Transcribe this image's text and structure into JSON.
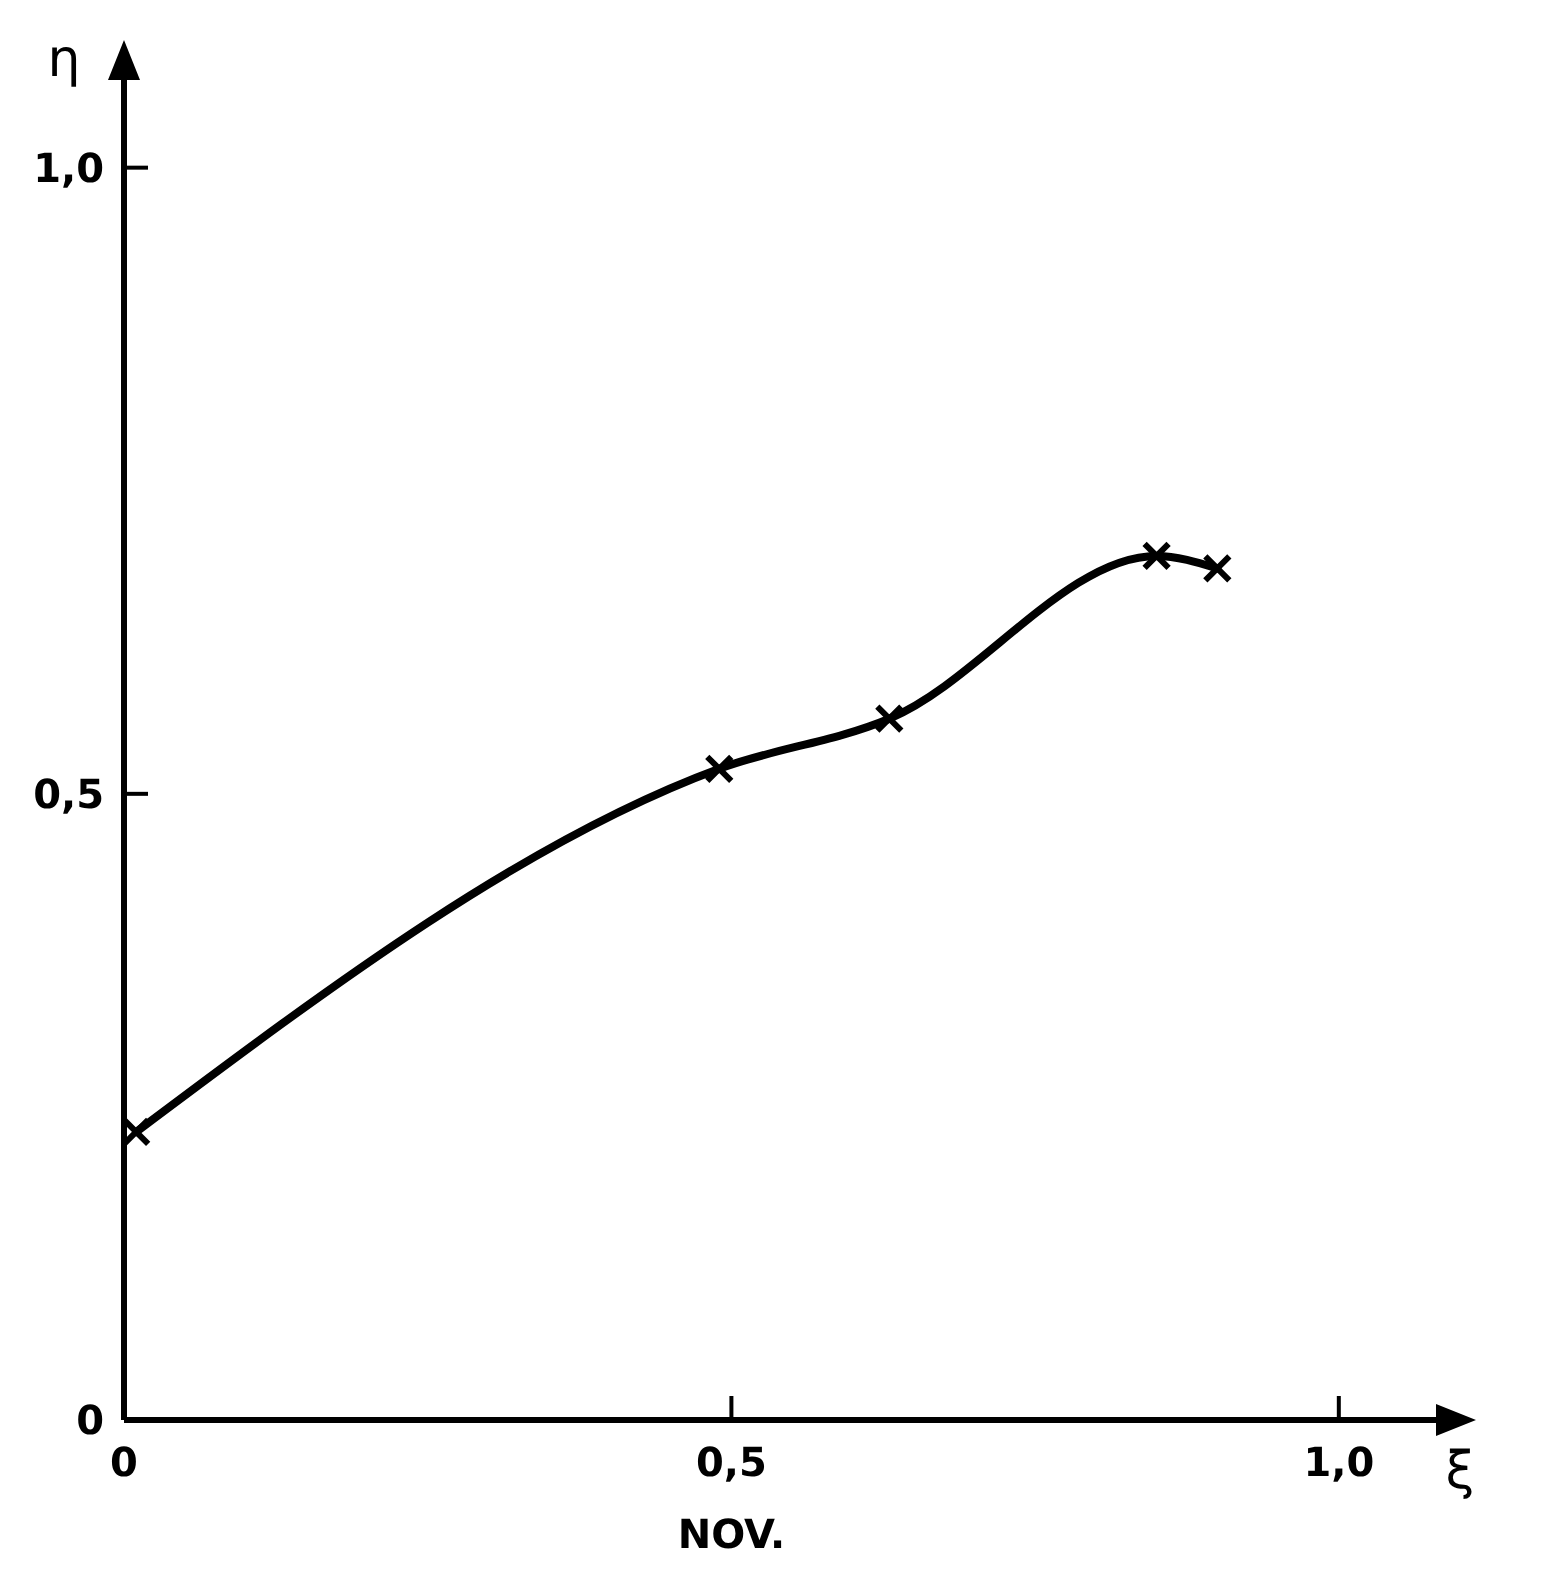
{
  "chart_data": {
    "type": "line",
    "xlabel": "ξ",
    "ylabel": "η",
    "annotations": [
      "NOV."
    ],
    "xlim": [
      0,
      1.08
    ],
    "ylim": [
      0,
      1.07
    ],
    "xticks": [
      0,
      {
        "value": 0.5,
        "label": "0,5"
      },
      {
        "value": 1,
        "label": "1,0"
      }
    ],
    "yticks": [
      0,
      {
        "value": 0.5,
        "label": "0,5"
      },
      {
        "value": 1,
        "label": "1,0"
      }
    ],
    "x": [
      0.01,
      0.49,
      0.63,
      0.85,
      0.9
    ],
    "series": [
      {
        "color": "#000000",
        "values": [
          0.23,
          0.52,
          0.56,
          0.69,
          0.68
        ]
      }
    ],
    "marker": "cross",
    "line_style": "solid",
    "grid": false
  }
}
